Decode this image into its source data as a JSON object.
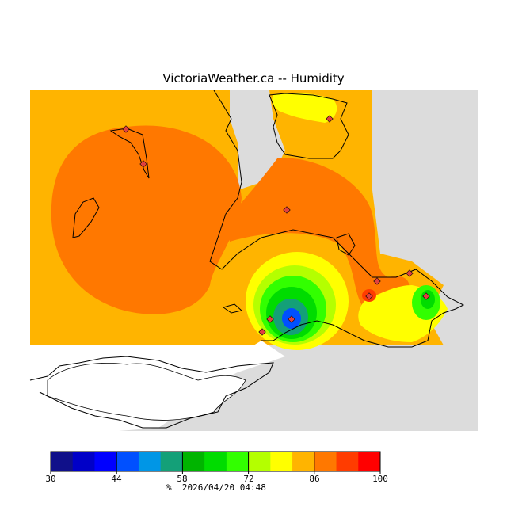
{
  "title": "VictoriaWeather.ca -- Humidity",
  "legend": {
    "ticks": [
      "30",
      "44",
      "58",
      "72",
      "86",
      "100"
    ],
    "unit": "%",
    "timestamp": "2026/04/20 04:48",
    "colors": [
      "#10108a",
      "#0000c8",
      "#0000ff",
      "#0050ff",
      "#0096e6",
      "#14a078",
      "#00b400",
      "#00dc00",
      "#32ff00",
      "#b4ff00",
      "#ffff00",
      "#ffb400",
      "#ff7800",
      "#ff3c00",
      "#ff0000"
    ]
  },
  "map": {
    "land_color": "#dcdcdc",
    "water_color": "#ffffff",
    "colors": {
      "very_high": "#ff7800",
      "high": "#ffb400",
      "medium_high": "#ffff00",
      "medium": "#b4ff00",
      "green_light": "#32ff00",
      "green": "#00dc00",
      "green_dark": "#00b400",
      "teal": "#14a078",
      "blue": "#0050ff",
      "station": "#e04040"
    },
    "station_icon": "diamond-station-marker-icon"
  }
}
